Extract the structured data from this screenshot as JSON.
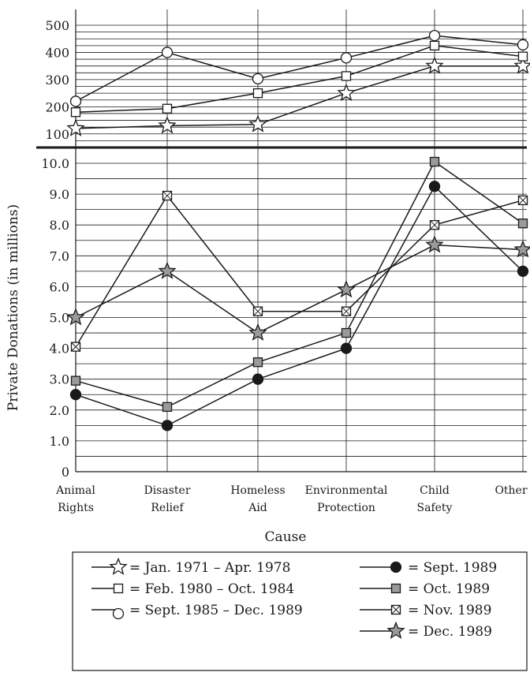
{
  "chart_data": {
    "type": "line",
    "ylabel": "Private Donations (in millions)",
    "xlabel": "Cause",
    "categories": [
      [
        "Animal",
        "Rights"
      ],
      [
        "Disaster",
        "Relief"
      ],
      [
        "Homeless",
        "Aid"
      ],
      [
        "Environmental",
        "Protection"
      ],
      [
        "Child",
        "Safety"
      ],
      [
        "Other"
      ]
    ],
    "upper_panel": {
      "ylim": [
        50,
        500
      ],
      "ticks": [
        100,
        200,
        300,
        400,
        500
      ],
      "series": [
        {
          "name": "= Jan. 1971 – Apr. 1978",
          "marker": "star-open",
          "values": [
            120,
            130,
            135,
            250,
            350,
            350
          ]
        },
        {
          "name": "= Feb. 1980 – Oct. 1984",
          "marker": "square-open",
          "values": [
            180,
            193,
            250,
            313,
            425,
            385
          ]
        },
        {
          "name": "= Sept. 1985 – Dec. 1989",
          "marker": "circle-open",
          "values": [
            220,
            400,
            303,
            380,
            462,
            428
          ]
        }
      ]
    },
    "lower_panel": {
      "ylim": [
        0,
        10.5
      ],
      "ticks": [
        "0",
        "1.0",
        "2.0",
        "3.0",
        "4.0",
        "5.0",
        "6.0",
        "7.0",
        "8.0",
        "9.0",
        "10.0"
      ],
      "series": [
        {
          "name": "= Sept. 1989",
          "marker": "circle-filled",
          "values": [
            2.5,
            1.5,
            3.0,
            4.0,
            9.25,
            6.5
          ]
        },
        {
          "name": "= Oct. 1989",
          "marker": "square-gray",
          "values": [
            2.95,
            2.1,
            3.55,
            4.5,
            10.05,
            8.05
          ]
        },
        {
          "name": "= Nov. 1989",
          "marker": "square-x",
          "values": [
            4.05,
            8.95,
            5.2,
            5.2,
            8.0,
            8.8
          ]
        },
        {
          "name": "= Dec. 1989",
          "marker": "star-gray",
          "values": [
            5.0,
            6.5,
            4.5,
            5.9,
            7.35,
            7.2
          ]
        }
      ]
    },
    "grid": true,
    "legend_position": "bottom"
  },
  "colors": {
    "line": "#1a1a1a",
    "marker_gray": "#9a9a9a",
    "grid": "#1a1a1a"
  }
}
